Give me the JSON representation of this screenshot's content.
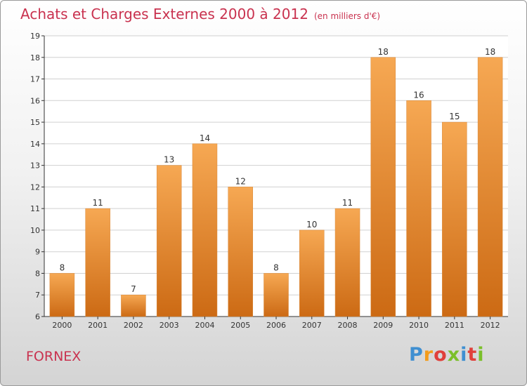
{
  "chart_data": {
    "type": "bar",
    "title": "Achats et Charges Externes 2000 à 2012",
    "unit_note": "(en milliers d'€)",
    "categories": [
      "2000",
      "2001",
      "2002",
      "2003",
      "2004",
      "2005",
      "2006",
      "2007",
      "2008",
      "2009",
      "2010",
      "2011",
      "2012"
    ],
    "values": [
      8,
      11,
      7,
      13,
      14,
      12,
      8,
      10,
      11,
      18,
      16,
      15,
      18
    ],
    "ylim": [
      6,
      19
    ],
    "yticks": [
      6,
      7,
      8,
      9,
      10,
      11,
      12,
      13,
      14,
      15,
      16,
      17,
      18,
      19
    ],
    "grid": true,
    "legend": "none",
    "bar_color_light": "#f6a853",
    "bar_color_dark": "#cc6a14"
  },
  "location": "FORNEX",
  "brand": {
    "letters": [
      "P",
      "r",
      "o",
      "x",
      "i",
      "t",
      "i"
    ],
    "colors": [
      "#3f8fd1",
      "#f39c1c",
      "#e0403b",
      "#7bbf2a",
      "#3f8fd1",
      "#e0403b",
      "#7bbf2a"
    ]
  }
}
